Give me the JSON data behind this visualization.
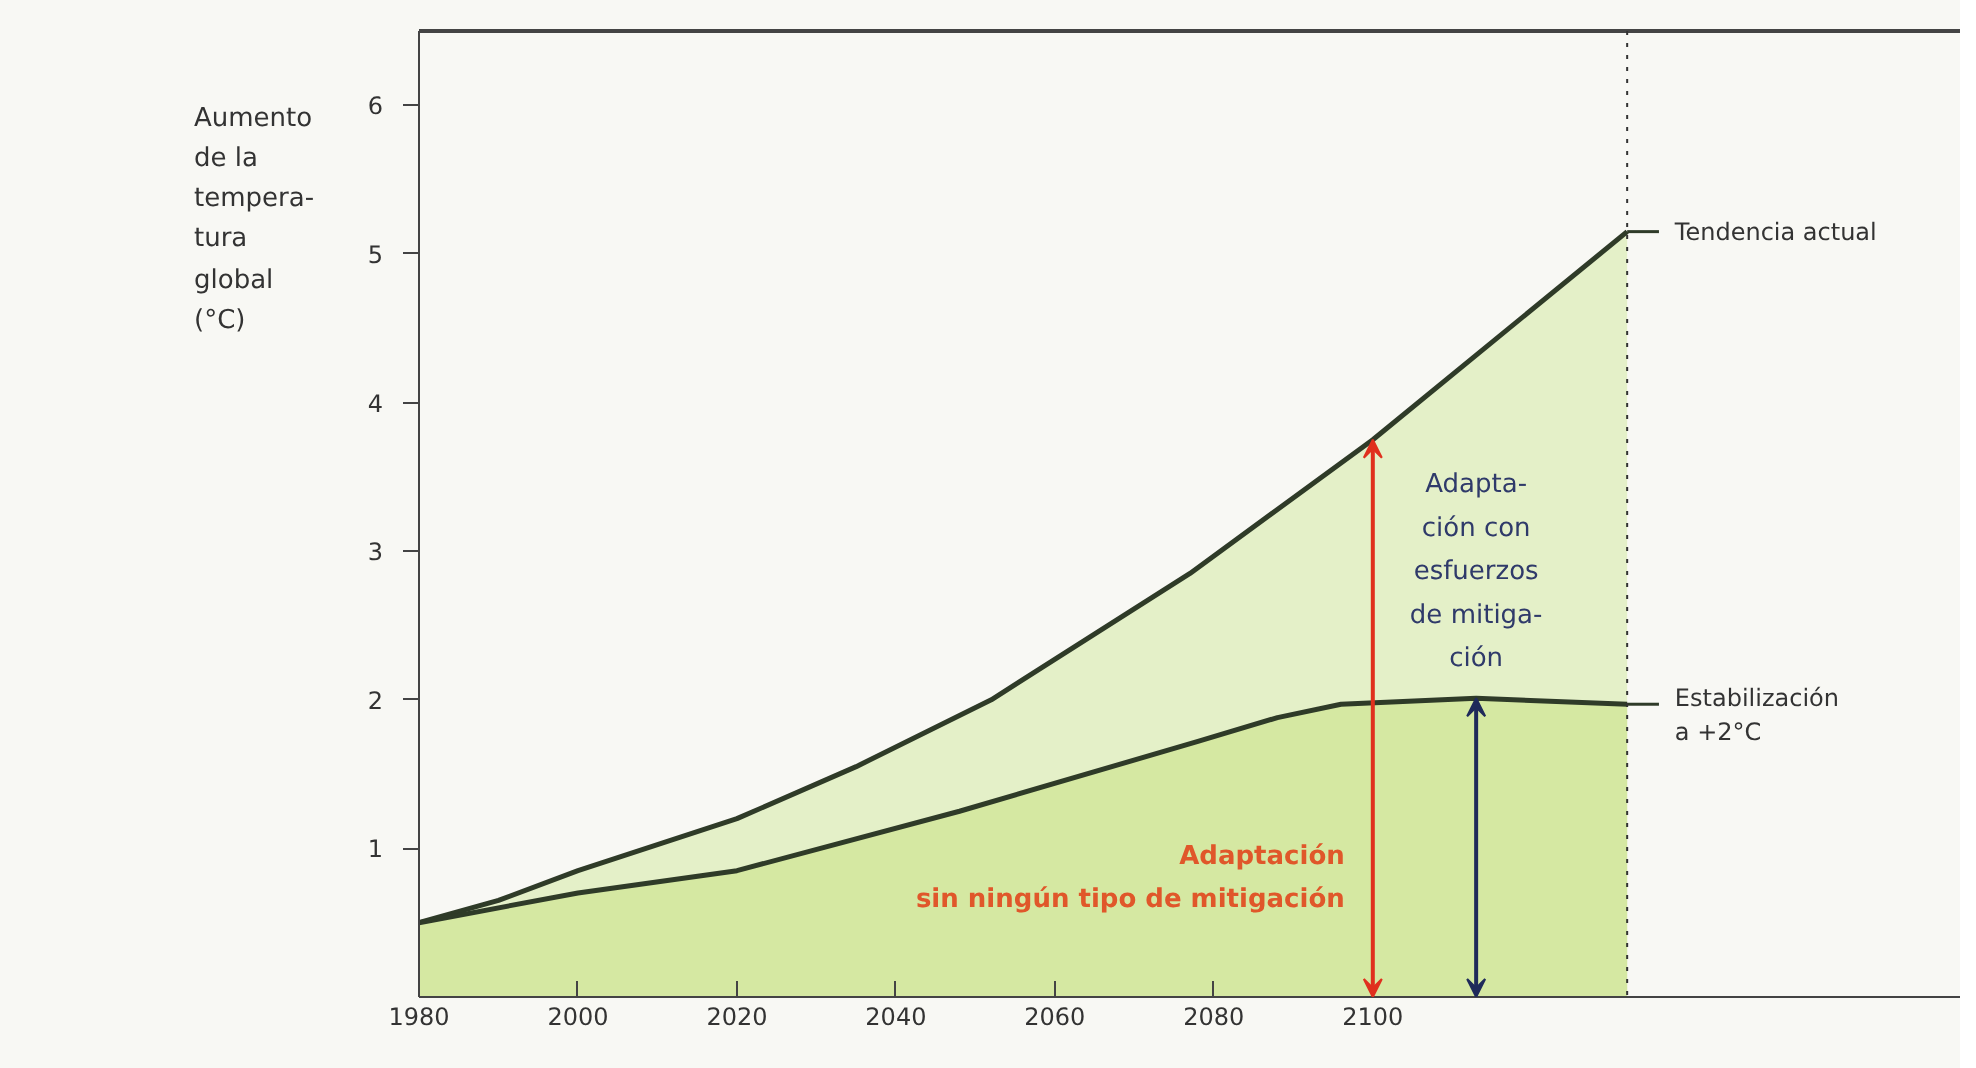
{
  "chart_data": {
    "type": "area",
    "ylabel": "Aumento\nde la\ntempera-\ntura\nglobal\n(°C)",
    "series": [
      {
        "name": "Tendencia actual",
        "color": "#e4f0c8",
        "x": [
          1980,
          1990,
          2000,
          2020,
          2035,
          2052,
          2077,
          2100,
          2132
        ],
        "values": [
          0.5,
          0.65,
          0.85,
          1.2,
          1.55,
          2.0,
          2.85,
          3.75,
          5.15
        ]
      },
      {
        "name": "Estabilización\na +2°C",
        "color": "#d5e8a2",
        "x": [
          1980,
          2000,
          2020,
          2048,
          2078,
          2088,
          2096,
          2113,
          2132
        ],
        "values": [
          0.5,
          0.7,
          0.85,
          1.25,
          1.72,
          1.88,
          1.97,
          2.01,
          1.97
        ]
      }
    ],
    "xlim": [
      1980,
      2174
    ],
    "ylim": [
      0,
      6.5
    ],
    "xticks": [
      1980,
      2000,
      2020,
      2040,
      2060,
      2080,
      2100
    ],
    "yticks": [
      1,
      2,
      3,
      4,
      5,
      6
    ],
    "ref_lines": [
      {
        "axis": "x",
        "value": 2132,
        "label": null,
        "color": "#333333",
        "line_style": "dotted"
      }
    ],
    "annotations": [
      "Adaptación\nsin ningún tipo de mitigación",
      "Adapta-\nción con\nesfuerzos\nde mitiga-\nción"
    ],
    "grid": false,
    "legend": "right"
  }
}
